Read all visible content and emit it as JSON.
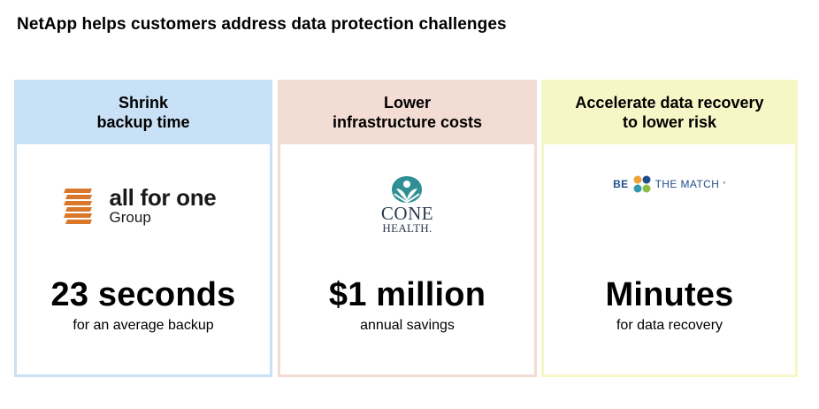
{
  "title": "NetApp helps customers address data protection challenges",
  "cards": [
    {
      "heading": "Shrink\nbackup time",
      "logo": {
        "name": "all for one",
        "sub": "Group",
        "icon": "stacked-bars-icon",
        "color": "#d9772b"
      },
      "stat": "23 seconds",
      "caption": "for an average backup",
      "accent": "#c9e1f6"
    },
    {
      "heading": "Lower\ninfrastructure costs",
      "logo": {
        "name": "CONE",
        "sub": "HEALTH.",
        "icon": "cone-health-leaf-icon",
        "color": "#2f8f94"
      },
      "stat": "$1 million",
      "caption": "annual savings",
      "accent": "#f2dcd3"
    },
    {
      "heading": "Accelerate data recovery\nto lower risk",
      "logo": {
        "pre": "BE",
        "post": "THE MATCH",
        "mark": "°",
        "icon": "be-the-match-flower-icon",
        "color": "#1f4d8a"
      },
      "stat": "Minutes",
      "caption": "for data recovery",
      "accent": "#f7f6c6"
    }
  ]
}
